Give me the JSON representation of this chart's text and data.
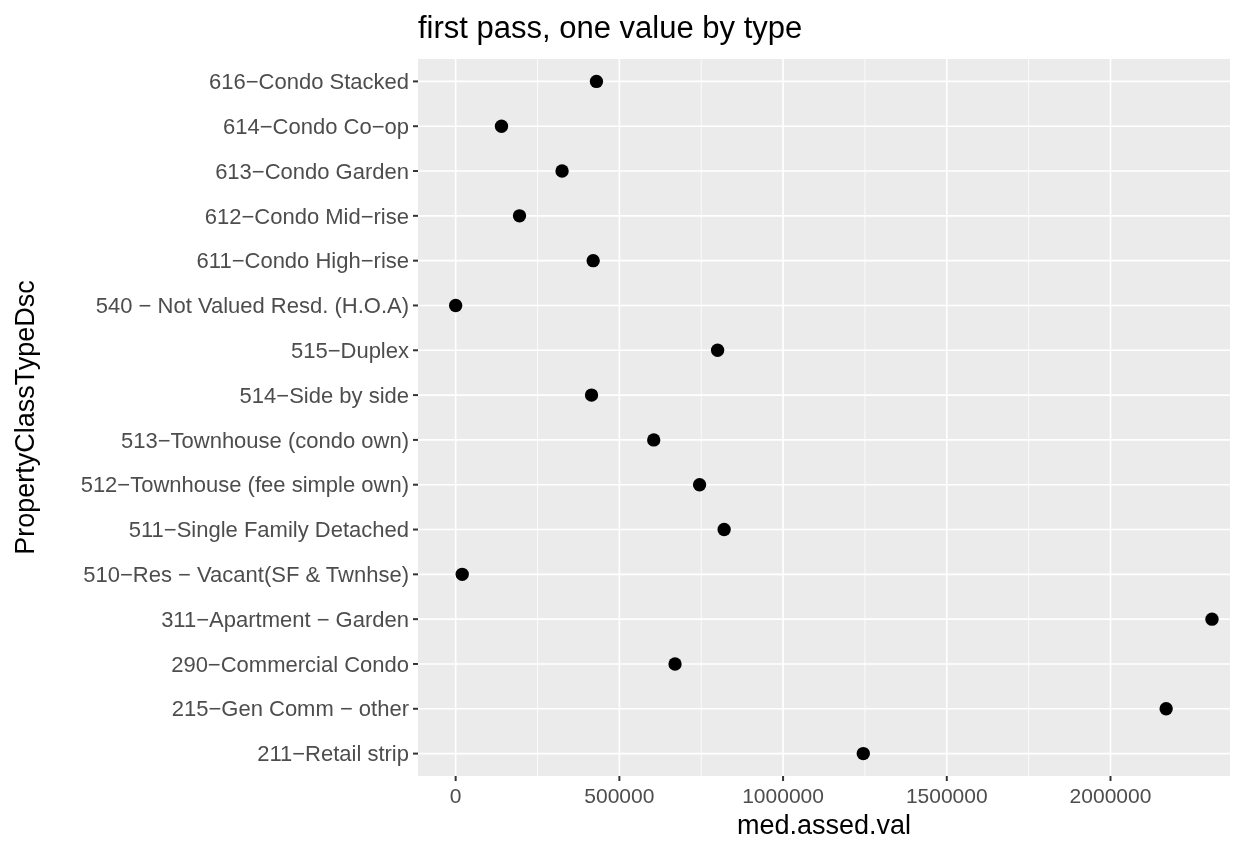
{
  "chart_data": {
    "type": "scatter",
    "orientation": "horizontal",
    "title": "first pass, one value by type",
    "xlabel": "med.assed.val",
    "ylabel": "PropertyClassTypeDsc",
    "categories": [
      "616−Condo Stacked",
      "614−Condo Co−op",
      "613−Condo Garden",
      "612−Condo Mid−rise",
      "611−Condo High−rise",
      "540 − Not Valued Resd. (H.O.A)",
      "515−Duplex",
      "514−Side by side",
      "513−Townhouse (condo own)",
      "512−Townhouse (fee simple own)",
      "511−Single Family Detached",
      "510−Res − Vacant(SF & Twnhse)",
      "311−Apartment − Garden",
      "290−Commercial Condo",
      "215−Gen Comm − other",
      "211−Retail strip"
    ],
    "values": [
      430000,
      140000,
      325000,
      195000,
      420000,
      0,
      800000,
      415000,
      605000,
      745000,
      820000,
      20000,
      2310000,
      670000,
      2170000,
      1245000
    ],
    "color": "#000000",
    "marker": "circle",
    "grid": true,
    "xlim": [
      -115000,
      2365000
    ],
    "xticks": [
      0,
      500000,
      1000000,
      1500000,
      2000000
    ]
  }
}
